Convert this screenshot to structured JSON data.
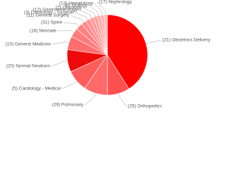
{
  "chart_data": {
    "type": "pie",
    "categories": [
      "(21) Obstetrics Delivery",
      "(25) Orthopedics",
      "(29) Pulmonary",
      "(5) Cardiology - Medical",
      "(20) Normal Newborn",
      "(10) General Medicine",
      "(16) Neonate",
      "(31) Spine",
      "(11) General Surgery",
      "(3) Cardiology - Surgical",
      "(12) Gastroenterology",
      "(2) Oncology",
      "(8) Urology",
      "(13) Hematology",
      "(17) Nephrology"
    ],
    "values": [
      41,
      9,
      9.5,
      8.6,
      9,
      5.5,
      3.6,
      2.8,
      2,
      1.8,
      1.6,
      1.5,
      1.4,
      1.3,
      1.4
    ],
    "colors": [
      "#ff0000",
      "#ff5050",
      "#ff6a6a",
      "#ff5c5c",
      "#ee0a0a",
      "#ff6e6e",
      "#ff7a7a",
      "#ff8080",
      "#ff8a8a",
      "#ff9090",
      "#ff9a9a",
      "#ffa0a0",
      "#ffa8a8",
      "#ffb0b0",
      "#ffb8b8"
    ]
  }
}
